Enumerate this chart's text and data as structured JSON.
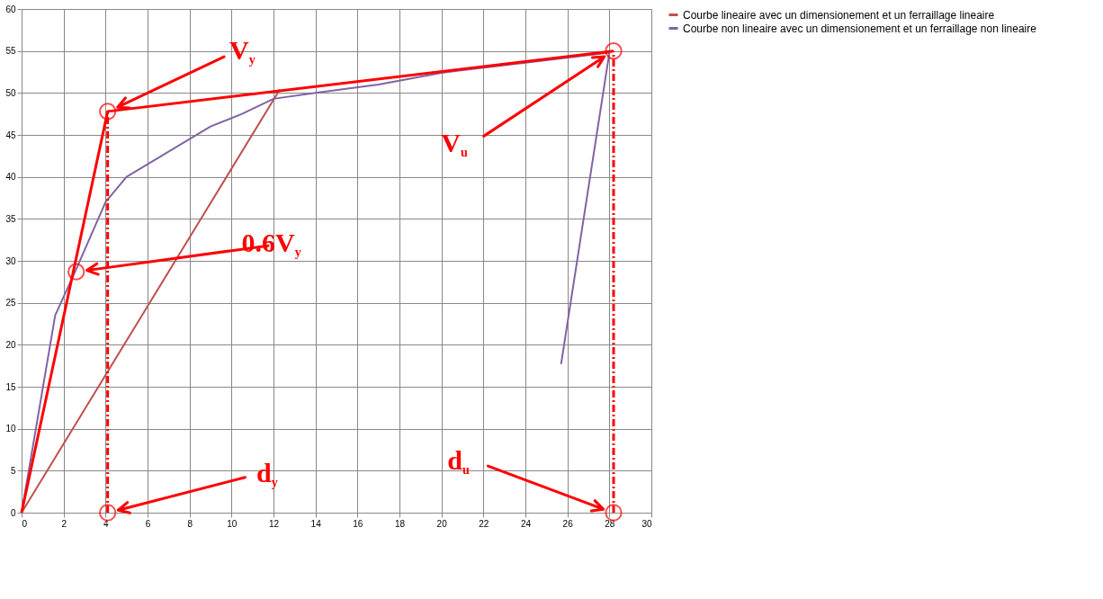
{
  "chart_data": {
    "type": "line",
    "xlim": [
      0,
      30
    ],
    "xticks": [
      0,
      2,
      4,
      6,
      8,
      10,
      12,
      14,
      16,
      18,
      20,
      22,
      24,
      26,
      28,
      30
    ],
    "ylim": [
      0,
      60
    ],
    "yticks": [
      0,
      5,
      10,
      15,
      20,
      25,
      30,
      35,
      40,
      45,
      50,
      55,
      60
    ],
    "grid": true,
    "legend": "right",
    "series": [
      {
        "name": "Courbe lineaire avec un dimensionement et un ferraillage lineaire",
        "color": "#c0504d",
        "x": [
          0,
          12.3
        ],
        "values": [
          0,
          50.4
        ]
      },
      {
        "name": "Courbe non lineaire avec un dimensionement et un ferraillage non lineaire",
        "color": "#8064a2",
        "x": [
          0,
          1.6,
          2.6,
          4,
          5,
          6,
          8,
          9,
          10.5,
          12,
          14,
          17,
          20,
          24,
          28,
          25.7
        ],
        "values": [
          0,
          23.5,
          29,
          37,
          40,
          41.5,
          44.5,
          46,
          47.5,
          49.3,
          50,
          51,
          52.4,
          53.6,
          54.8,
          17.7
        ]
      },
      {
        "color": "#ff0000",
        "x": [
          0,
          4.1,
          28.2
        ],
        "values": [
          0,
          47.8,
          55
        ]
      },
      {
        "color": "#ff0000",
        "line_style": "dashed",
        "x": [
          4.1,
          4.1
        ],
        "values": [
          0,
          47.8
        ]
      },
      {
        "color": "#ff0000",
        "line_style": "dashed",
        "x": [
          28.2,
          28.2
        ],
        "values": [
          0,
          55
        ]
      },
      {
        "type": "scatter",
        "marker": "circle",
        "color": "#ff0000",
        "x": [
          4.1,
          2.6,
          28.2,
          4.1,
          28.2
        ],
        "values": [
          47.8,
          28.7,
          55,
          0,
          0
        ]
      }
    ],
    "annotations": [
      "V$_{y}$",
      "0.6V$_{y}$",
      "V$_{u}$",
      "d$_{y}$",
      "d$_{u}$"
    ]
  }
}
